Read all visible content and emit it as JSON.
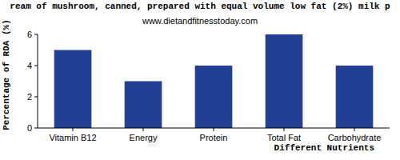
{
  "chart_data": {
    "type": "bar",
    "title": "ream of mushroom, canned, prepared with equal volume low fat (2%) milk p",
    "subtitle": "www.dietandfitnesstoday.com",
    "x_label": "Different Nutrients",
    "y_label": "Percentage of RDA (%)",
    "categories": [
      "Vitamin B12",
      "Energy",
      "Protein",
      "Total Fat",
      "Carbohydrate"
    ],
    "values": [
      5,
      3,
      4,
      6,
      4
    ],
    "color": "#233f94",
    "ylim": [
      0,
      6
    ],
    "yticks": [
      0,
      2,
      4,
      6
    ],
    "grid": false
  }
}
